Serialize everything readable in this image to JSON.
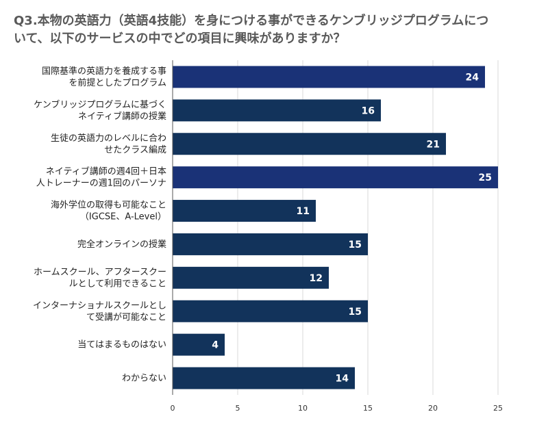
{
  "chart_data": {
    "type": "bar",
    "orientation": "horizontal",
    "title_lines": [
      "Q3.本物の英語力（英語4技能）を身につける事ができるケンブリッジプログラムにつ",
      "いて、以下のサービスの中でどの項目に興味がありますか？"
    ],
    "categories": [
      [
        "国際基準の英語力を養成する事",
        "を前提としたプログラム"
      ],
      [
        "ケンブリッジプログラムに基づく",
        "ネイティブ講師の授業"
      ],
      [
        "生徒の英語力のレベルに合わ",
        "せたクラス編成"
      ],
      [
        "ネイティブ講師の週4回＋日本",
        "人トレーナーの週1回のパーソナ"
      ],
      [
        "海外学位の取得も可能なこと",
        "（IGCSE、A-Level）"
      ],
      [
        "完全オンラインの授業"
      ],
      [
        "ホームスクール、アフタースクー",
        "ルとして利用できること"
      ],
      [
        "インターナショナルスクールとし",
        "て受講が可能なこと"
      ],
      [
        "当てはまるものはない"
      ],
      [
        "わからない"
      ]
    ],
    "values": [
      24,
      16,
      21,
      25,
      11,
      15,
      12,
      15,
      4,
      14
    ],
    "highlighted": [
      true,
      false,
      false,
      true,
      false,
      false,
      false,
      false,
      false,
      false
    ],
    "x_ticks": [
      0,
      5,
      10,
      15,
      20,
      25
    ],
    "xlim": [
      0,
      25
    ],
    "grid": true,
    "colors": {
      "highlight": "#1a3277",
      "normal": "#12335b",
      "grid": "#d9d9d9",
      "axis": "#555555"
    }
  }
}
